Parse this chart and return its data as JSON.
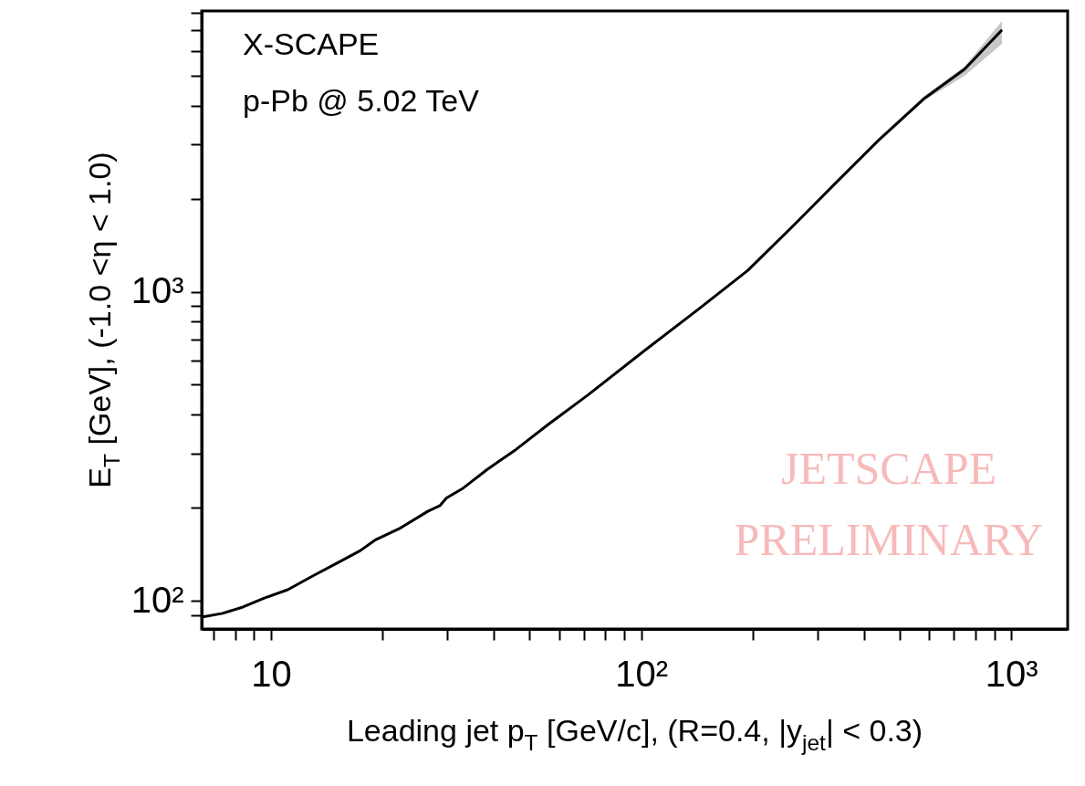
{
  "chart_data": {
    "type": "line",
    "xlabel": "Leading jet p$_{T}$ [GeV/c], (R=0.4, |y$_{jet}$| < 0.3)",
    "ylabel": "E$_{T}$ [GeV], (-1.0 <η < 1.0)",
    "annotations": [
      "X-SCAPE",
      "p-Pb @ 5.02 TeV",
      "JETSCAPE PRELIMINARY"
    ],
    "log": "xy",
    "xlim": [
      6.5,
      1420
    ],
    "ylim": [
      81,
      8100
    ],
    "xticks": [
      {
        "value": 7,
        "label": null
      },
      {
        "value": 8,
        "label": null
      },
      {
        "value": 9,
        "label": null
      },
      10,
      {
        "value": 20,
        "label": null
      },
      {
        "value": 30,
        "label": null
      },
      {
        "value": 40,
        "label": null
      },
      {
        "value": 50,
        "label": null
      },
      {
        "value": 60,
        "label": null
      },
      {
        "value": 70,
        "label": null
      },
      {
        "value": 80,
        "label": null
      },
      {
        "value": 90,
        "label": null
      },
      {
        "value": 100,
        "label": "10²"
      },
      {
        "value": 200,
        "label": null
      },
      {
        "value": 300,
        "label": null
      },
      {
        "value": 400,
        "label": null
      },
      {
        "value": 500,
        "label": null
      },
      {
        "value": 600,
        "label": null
      },
      {
        "value": 700,
        "label": null
      },
      {
        "value": 800,
        "label": null
      },
      {
        "value": 900,
        "label": null
      },
      {
        "value": 1000,
        "label": "10³"
      }
    ],
    "yticks": [
      {
        "value": 90,
        "label": null
      },
      {
        "value": 100,
        "label": "10²"
      },
      {
        "value": 200,
        "label": null
      },
      {
        "value": 300,
        "label": null
      },
      {
        "value": 400,
        "label": null
      },
      {
        "value": 500,
        "label": null
      },
      {
        "value": 600,
        "label": null
      },
      {
        "value": 700,
        "label": null
      },
      {
        "value": 800,
        "label": null
      },
      {
        "value": 900,
        "label": null
      },
      {
        "value": 1000,
        "label": "10³"
      },
      {
        "value": 2000,
        "label": null
      },
      {
        "value": 3000,
        "label": null
      },
      {
        "value": 4000,
        "label": null
      },
      {
        "value": 5000,
        "label": null
      },
      {
        "value": 6000,
        "label": null
      },
      {
        "value": 7000,
        "label": null
      },
      {
        "value": 8000,
        "label": null
      }
    ],
    "grid": false,
    "marker": "none",
    "line_style": "solid",
    "series": [
      {
        "color": "#000000",
        "x": [
          6.5,
          7.4,
          8.4,
          9.6,
          11.1,
          13.1,
          15.2,
          17.4,
          19.1,
          22.4,
          26.6,
          28.6,
          29.8,
          33,
          38.4,
          46,
          56,
          72,
          102,
          138,
          194,
          261,
          337,
          438,
          582,
          748,
          944
        ],
        "values": [
          88.5,
          91,
          95.4,
          102,
          108.5,
          121,
          133,
          145,
          157,
          172,
          195,
          203,
          215,
          231,
          266,
          309,
          371,
          464,
          644,
          850,
          1170,
          1660,
          2260,
          3090,
          4220,
          5250,
          7030
        ],
        "lower": [
          88.5,
          91,
          95.4,
          102,
          108.5,
          121,
          133,
          145,
          157,
          172,
          195,
          203,
          215,
          231,
          266,
          309,
          371,
          464,
          644,
          850,
          1170,
          1660,
          2250,
          3060,
          4150,
          5000,
          6340
        ],
        "upper": [
          88.5,
          91,
          95.4,
          102,
          108.5,
          121,
          133,
          145,
          157,
          172,
          195,
          203,
          215,
          231,
          266,
          309,
          371,
          464,
          644,
          850,
          1170,
          1660,
          2270,
          3120,
          4300,
          5360,
          7520
        ]
      }
    ]
  }
}
